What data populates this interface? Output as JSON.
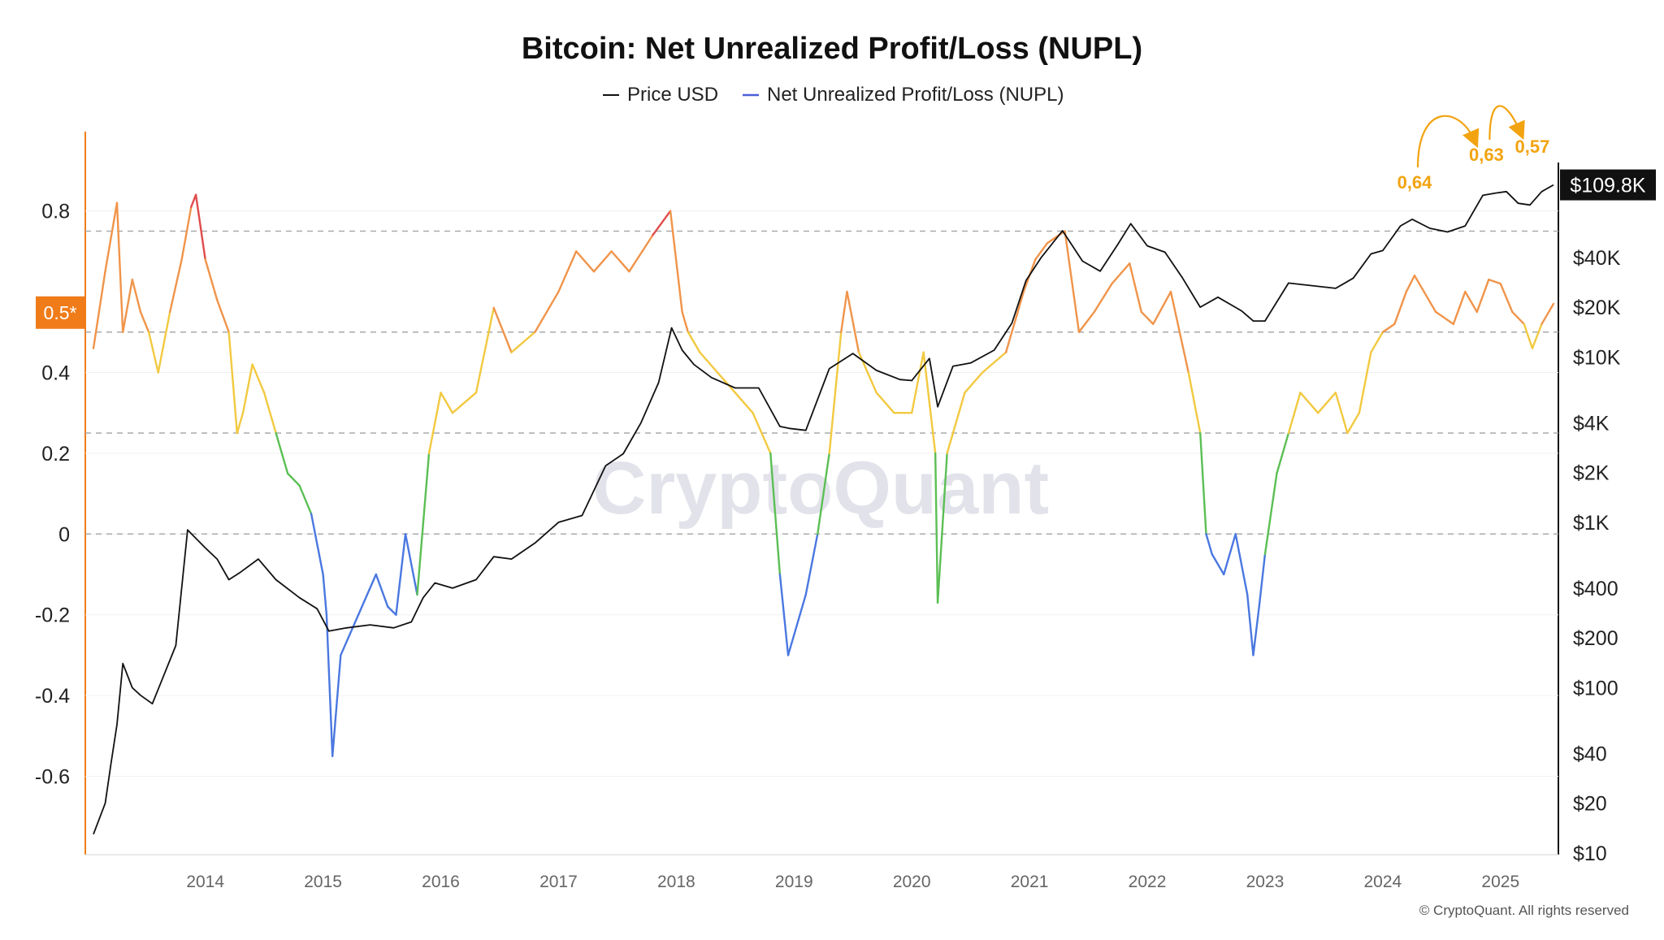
{
  "chart_data": {
    "type": "line",
    "title": "Bitcoin: Net Unrealized Profit/Loss (NUPL)",
    "legend": [
      {
        "name": "Price USD",
        "color": "#111111"
      },
      {
        "name": "Net Unrealized Profit/Loss (NUPL)",
        "color": "#4a5fd8"
      }
    ],
    "legend_position": "top-center",
    "watermark": "CryptoQuant",
    "copyright": "© CryptoQuant. All rights reserved",
    "x_axis": {
      "ticks": [
        "2014",
        "2015",
        "2016",
        "2017",
        "2018",
        "2019",
        "2020",
        "2021",
        "2022",
        "2023",
        "2024",
        "2025"
      ],
      "range": [
        2013.05,
        2025.45
      ]
    },
    "y_left": {
      "ticks": [
        "0.8",
        "0.4",
        "0.2",
        "0",
        "-0.2",
        "-0.4",
        "-0.6"
      ],
      "tick_values": [
        0.8,
        0.4,
        0.2,
        0,
        -0.2,
        -0.4,
        -0.6
      ],
      "range": [
        -0.79,
        0.92
      ],
      "highlight": {
        "label": "0.5*",
        "value": 0.5,
        "color": "#f07c19"
      },
      "reference_lines": [
        0.75,
        0.5,
        0.25,
        0
      ]
    },
    "y_right": {
      "scale": "log",
      "ticks": [
        "$40K",
        "$20K",
        "$10K",
        "$4K",
        "$2K",
        "$1K",
        "$400",
        "$200",
        "$100",
        "$40",
        "$20",
        "$10"
      ],
      "tick_values": [
        40000,
        20000,
        10000,
        4000,
        2000,
        1000,
        400,
        200,
        100,
        40,
        20,
        10
      ],
      "range": [
        10,
        150000
      ],
      "current_price_label": "$109.8K"
    },
    "annotations": [
      {
        "text": "0,64",
        "x": 2024.27,
        "y": 0.64
      },
      {
        "text": "0,63",
        "x": 2024.88,
        "y": 0.63
      },
      {
        "text": "0,57",
        "x": 2025.27,
        "y": 0.57
      }
    ],
    "zone_colors": {
      "euphoria": "#e14b4b",
      "belief": "#f0944a",
      "optimism": "#f2c940",
      "hope": "#5bbf54",
      "capitulation": "#4a78e0"
    },
    "series": [
      {
        "name": "Price USD",
        "color": "#111111",
        "x": [
          2013.05,
          2013.15,
          2013.2,
          2013.25,
          2013.3,
          2013.38,
          2013.45,
          2013.55,
          2013.65,
          2013.75,
          2013.85,
          2013.92,
          2014.0,
          2014.1,
          2014.2,
          2014.3,
          2014.45,
          2014.6,
          2014.8,
          2014.95,
          2015.05,
          2015.2,
          2015.4,
          2015.6,
          2015.75,
          2015.85,
          2015.95,
          2016.1,
          2016.3,
          2016.45,
          2016.6,
          2016.8,
          2017.0,
          2017.2,
          2017.4,
          2017.55,
          2017.7,
          2017.85,
          2017.96,
          2018.05,
          2018.15,
          2018.3,
          2018.5,
          2018.7,
          2018.88,
          2018.96,
          2019.1,
          2019.3,
          2019.5,
          2019.7,
          2019.9,
          2020.0,
          2020.15,
          2020.22,
          2020.35,
          2020.5,
          2020.7,
          2020.85,
          2020.97,
          2021.1,
          2021.28,
          2021.45,
          2021.6,
          2021.75,
          2021.86,
          2022.0,
          2022.15,
          2022.3,
          2022.45,
          2022.6,
          2022.8,
          2022.9,
          2023.0,
          2023.2,
          2023.4,
          2023.6,
          2023.75,
          2023.9,
          2024.0,
          2024.15,
          2024.25,
          2024.4,
          2024.55,
          2024.7,
          2024.85,
          2024.96,
          2025.05,
          2025.15,
          2025.25,
          2025.35,
          2025.45
        ],
        "values": [
          13,
          20,
          35,
          60,
          140,
          100,
          90,
          80,
          120,
          180,
          900,
          800,
          700,
          600,
          450,
          500,
          600,
          450,
          350,
          300,
          220,
          230,
          240,
          230,
          250,
          350,
          430,
          400,
          450,
          620,
          600,
          750,
          1000,
          1100,
          2200,
          2600,
          4000,
          7000,
          15000,
          11000,
          9000,
          7500,
          6500,
          6500,
          3800,
          3700,
          3600,
          8500,
          10500,
          8300,
          7300,
          7200,
          9800,
          5000,
          8800,
          9200,
          11000,
          16000,
          29000,
          40000,
          58000,
          38000,
          33000,
          48000,
          64000,
          47000,
          43000,
          30000,
          20000,
          23000,
          19000,
          16500,
          16500,
          28000,
          27000,
          26000,
          30000,
          42000,
          44000,
          62000,
          68000,
          60000,
          57000,
          62000,
          95000,
          98000,
          100000,
          85000,
          83000,
          100000,
          109800
        ]
      },
      {
        "name": "Net Unrealized Profit/Loss (NUPL)",
        "color": "#4a5fd8",
        "x": [
          2013.05,
          2013.15,
          2013.25,
          2013.3,
          2013.38,
          2013.45,
          2013.52,
          2013.6,
          2013.7,
          2013.8,
          2013.88,
          2013.92,
          2014.0,
          2014.1,
          2014.2,
          2014.27,
          2014.32,
          2014.4,
          2014.5,
          2014.6,
          2014.7,
          2014.8,
          2014.9,
          2015.0,
          2015.03,
          2015.08,
          2015.15,
          2015.3,
          2015.45,
          2015.55,
          2015.62,
          2015.7,
          2015.8,
          2015.9,
          2016.0,
          2016.1,
          2016.3,
          2016.45,
          2016.6,
          2016.8,
          2017.0,
          2017.15,
          2017.3,
          2017.45,
          2017.6,
          2017.8,
          2017.95,
          2018.05,
          2018.1,
          2018.2,
          2018.35,
          2018.5,
          2018.65,
          2018.8,
          2018.88,
          2018.95,
          2019.0,
          2019.1,
          2019.2,
          2019.3,
          2019.4,
          2019.45,
          2019.55,
          2019.7,
          2019.85,
          2020.0,
          2020.1,
          2020.2,
          2020.22,
          2020.3,
          2020.45,
          2020.6,
          2020.8,
          2020.95,
          2021.05,
          2021.15,
          2021.3,
          2021.42,
          2021.55,
          2021.7,
          2021.85,
          2021.95,
          2022.05,
          2022.2,
          2022.35,
          2022.45,
          2022.5,
          2022.55,
          2022.65,
          2022.75,
          2022.85,
          2022.9,
          2022.95,
          2023.0,
          2023.1,
          2023.2,
          2023.3,
          2023.45,
          2023.6,
          2023.7,
          2023.8,
          2023.9,
          2024.0,
          2024.1,
          2024.2,
          2024.27,
          2024.35,
          2024.45,
          2024.6,
          2024.7,
          2024.8,
          2024.9,
          2025.0,
          2025.1,
          2025.2,
          2025.27,
          2025.35,
          2025.45
        ],
        "values": [
          0.46,
          0.65,
          0.82,
          0.5,
          0.63,
          0.55,
          0.5,
          0.4,
          0.55,
          0.68,
          0.81,
          0.84,
          0.68,
          0.58,
          0.5,
          0.25,
          0.3,
          0.42,
          0.35,
          0.25,
          0.15,
          0.12,
          0.05,
          -0.1,
          -0.2,
          -0.55,
          -0.3,
          -0.2,
          -0.1,
          -0.18,
          -0.2,
          0.0,
          -0.15,
          0.2,
          0.35,
          0.3,
          0.35,
          0.56,
          0.45,
          0.5,
          0.6,
          0.7,
          0.65,
          0.7,
          0.65,
          0.74,
          0.8,
          0.55,
          0.5,
          0.45,
          0.4,
          0.35,
          0.3,
          0.2,
          -0.1,
          -0.3,
          -0.25,
          -0.15,
          0.0,
          0.2,
          0.5,
          0.6,
          0.45,
          0.35,
          0.3,
          0.3,
          0.45,
          0.2,
          -0.17,
          0.2,
          0.35,
          0.4,
          0.45,
          0.6,
          0.68,
          0.72,
          0.75,
          0.5,
          0.55,
          0.62,
          0.67,
          0.55,
          0.52,
          0.6,
          0.4,
          0.25,
          0.0,
          -0.05,
          -0.1,
          0.0,
          -0.15,
          -0.3,
          -0.18,
          -0.05,
          0.15,
          0.25,
          0.35,
          0.3,
          0.35,
          0.25,
          0.3,
          0.45,
          0.5,
          0.52,
          0.6,
          0.64,
          0.6,
          0.55,
          0.52,
          0.6,
          0.55,
          0.63,
          0.62,
          0.55,
          0.52,
          0.46,
          0.52,
          0.57
        ]
      }
    ]
  }
}
